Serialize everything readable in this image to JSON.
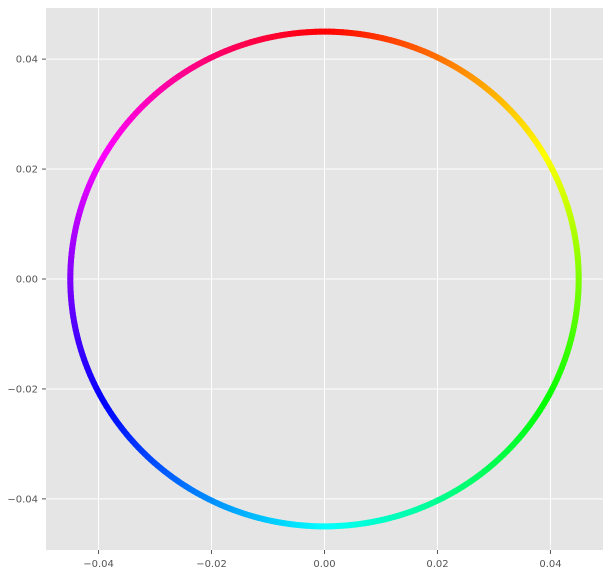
{
  "chart_data": {
    "type": "scatter",
    "title": "",
    "xlabel": "",
    "ylabel": "",
    "xlim": [
      -0.0493,
      0.0493
    ],
    "ylim": [
      -0.0493,
      0.0493
    ],
    "grid": true,
    "legend": "none",
    "style": "ggplot",
    "colormap": "hsv",
    "shape": "circle",
    "center": [
      0.0,
      0.0
    ],
    "radius": 0.045,
    "color_by": "angle",
    "x_ticks": [
      -0.04,
      -0.02,
      0.0,
      0.02,
      0.04
    ],
    "y_ticks": [
      -0.04,
      -0.02,
      0.0,
      0.02,
      0.04
    ],
    "x_tick_labels": [
      "−0.04",
      "−0.02",
      "0.00",
      "0.02",
      "0.04"
    ],
    "y_tick_labels": [
      "−0.04",
      "−0.02",
      "0.00",
      "0.02",
      "0.04"
    ],
    "hue_samples": [
      {
        "x": 0.0,
        "y": 0.045,
        "color": "#ff0000"
      },
      {
        "x": 0.0318,
        "y": 0.0318,
        "color": "#ff9900"
      },
      {
        "x": 0.0411,
        "y": 0.0183,
        "color": "#ffff00"
      },
      {
        "x": 0.045,
        "y": 0.0,
        "color": "#99ff00"
      },
      {
        "x": 0.0318,
        "y": -0.0318,
        "color": "#00ff33"
      },
      {
        "x": 0.0,
        "y": -0.045,
        "color": "#00ffff"
      },
      {
        "x": -0.0318,
        "y": -0.0318,
        "color": "#0066ff"
      },
      {
        "x": -0.045,
        "y": 0.0,
        "color": "#6600ff"
      },
      {
        "x": -0.0318,
        "y": 0.0318,
        "color": "#ff00ff"
      },
      {
        "x": -0.0173,
        "y": 0.0415,
        "color": "#ff0066"
      }
    ]
  },
  "colors": {
    "background": "#e5e5e5",
    "grid": "#ffffff",
    "tick": "#555555"
  }
}
